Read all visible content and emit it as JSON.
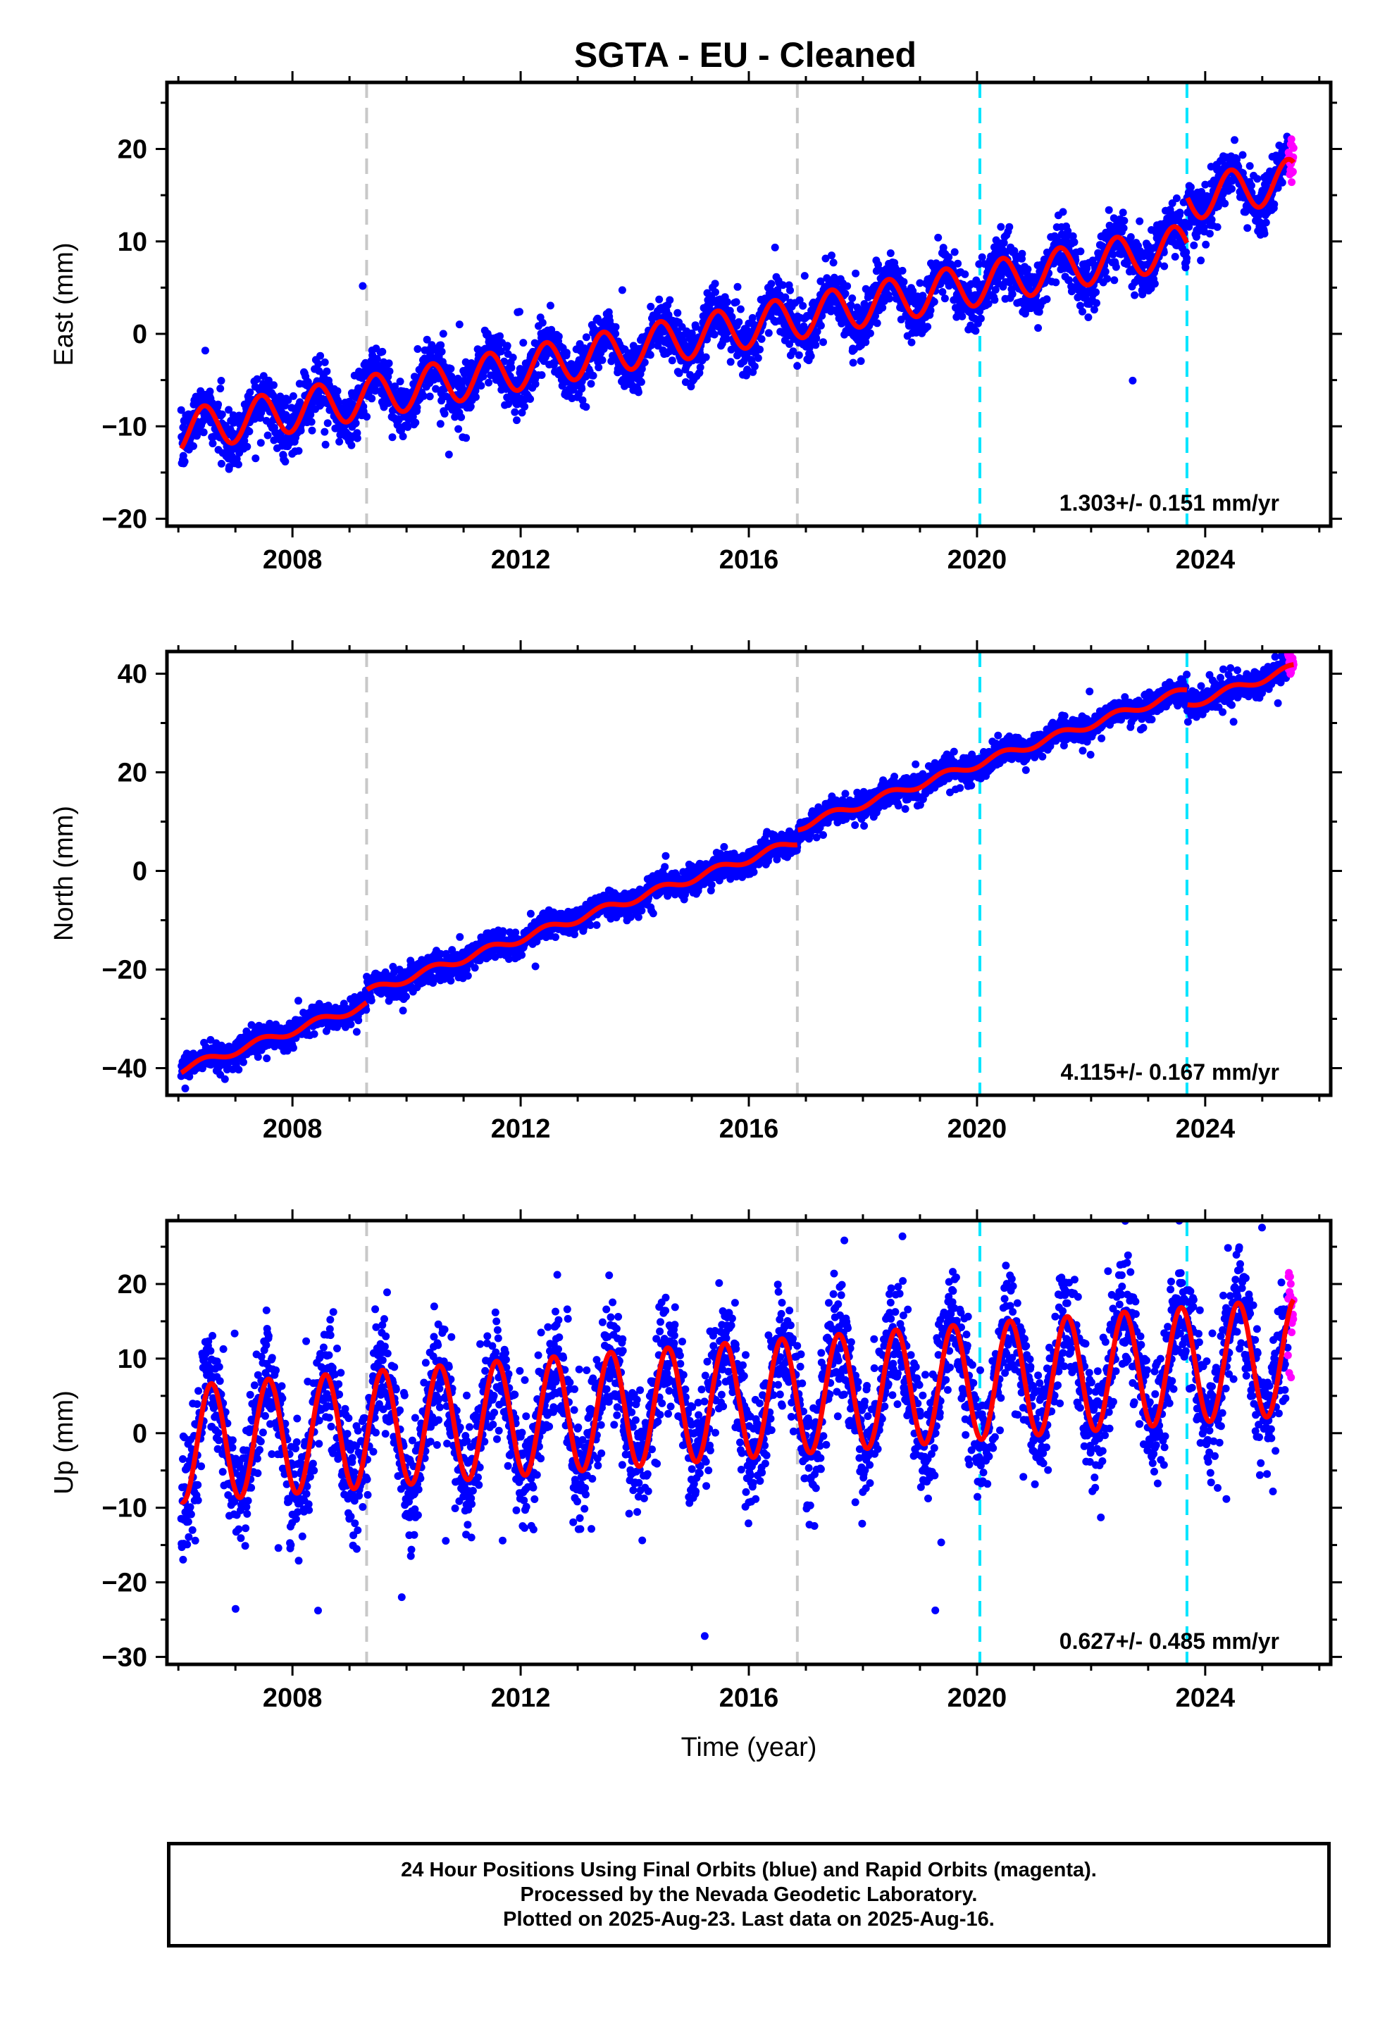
{
  "title": "SGTA  - EU - Cleaned",
  "colors": {
    "final_orbits": "#0000ff",
    "rapid_orbits": "#ff00ff",
    "model_fit": "#ff0000",
    "dashed_line_gray": "#c8c8c8",
    "dashed_line_cyan": "#00e5ff"
  },
  "chart_data": [
    {
      "type": "scatter",
      "ylabel": "East (mm)",
      "xlabel": "",
      "xlim": [
        2005.8,
        2026.2
      ],
      "ylim": [
        -20.8,
        27.2
      ],
      "x_ticks": [
        2008,
        2012,
        2016,
        2020,
        2024
      ],
      "y_ticks": [
        -20,
        -10,
        0,
        10,
        20
      ],
      "rate_label": "1.303+/- 0.151 mm/yr",
      "fit_model": {
        "ref_year": 2006.0,
        "intercept": -10.6,
        "rate": 1.14,
        "annual_amplitude": 2.3,
        "annual_peak": 0.45,
        "offsets": [
          {
            "year": 2023.68,
            "step": 5.0
          }
        ]
      },
      "noise_sd": 1.5,
      "vertical_lines": [
        {
          "year": 2009.3,
          "color": "gray"
        },
        {
          "year": 2016.85,
          "color": "gray"
        },
        {
          "year": 2020.05,
          "color": "cyan"
        },
        {
          "year": 2023.68,
          "color": "cyan"
        }
      ]
    },
    {
      "type": "scatter",
      "ylabel": "North (mm)",
      "xlabel": "",
      "xlim": [
        2005.8,
        2026.2
      ],
      "ylim": [
        -45.5,
        44.5
      ],
      "x_ticks": [
        2008,
        2012,
        2016,
        2020,
        2024
      ],
      "y_ticks": [
        -40,
        -20,
        0,
        20,
        40
      ],
      "rate_label": "4.115+/- 0.167 mm/yr",
      "fit_model": {
        "ref_year": 2006.0,
        "intercept": -40.5,
        "rate": 4.05,
        "annual_amplitude": 0.8,
        "annual_peak": 0.45,
        "offsets": [
          {
            "year": 2009.3,
            "step": 2.5
          },
          {
            "year": 2016.85,
            "step": 3.0
          },
          {
            "year": 2023.68,
            "step": -3.0
          }
        ]
      },
      "noise_sd": 1.3,
      "vertical_lines": [
        {
          "year": 2009.3,
          "color": "gray"
        },
        {
          "year": 2016.85,
          "color": "gray"
        },
        {
          "year": 2020.05,
          "color": "cyan"
        },
        {
          "year": 2023.68,
          "color": "cyan"
        }
      ]
    },
    {
      "type": "scatter",
      "ylabel": "Up (mm)",
      "xlabel": "Time (year)",
      "xlim": [
        2005.8,
        2026.2
      ],
      "ylim": [
        -31,
        28.5
      ],
      "x_ticks": [
        2008,
        2012,
        2016,
        2020,
        2024
      ],
      "y_ticks": [
        -30,
        -20,
        -10,
        0,
        10,
        20
      ],
      "rate_label": "0.627+/- 0.485 mm/yr",
      "fit_model": {
        "ref_year": 2006.0,
        "intercept": -1.5,
        "rate": 0.6,
        "annual_amplitude": 7.8,
        "annual_peak": 0.58,
        "offsets": []
      },
      "noise_sd": 4.0,
      "vertical_lines": [
        {
          "year": 2009.3,
          "color": "gray"
        },
        {
          "year": 2016.85,
          "color": "gray"
        },
        {
          "year": 2020.05,
          "color": "cyan"
        },
        {
          "year": 2023.68,
          "color": "cyan"
        }
      ]
    }
  ],
  "footer": {
    "line1": "24 Hour Positions Using Final Orbits (blue) and Rapid Orbits (magenta).",
    "line2": "Processed by the Nevada Geodetic Laboratory.",
    "line3": "Plotted on 2025-Aug-23. Last data on 2025-Aug-16."
  }
}
